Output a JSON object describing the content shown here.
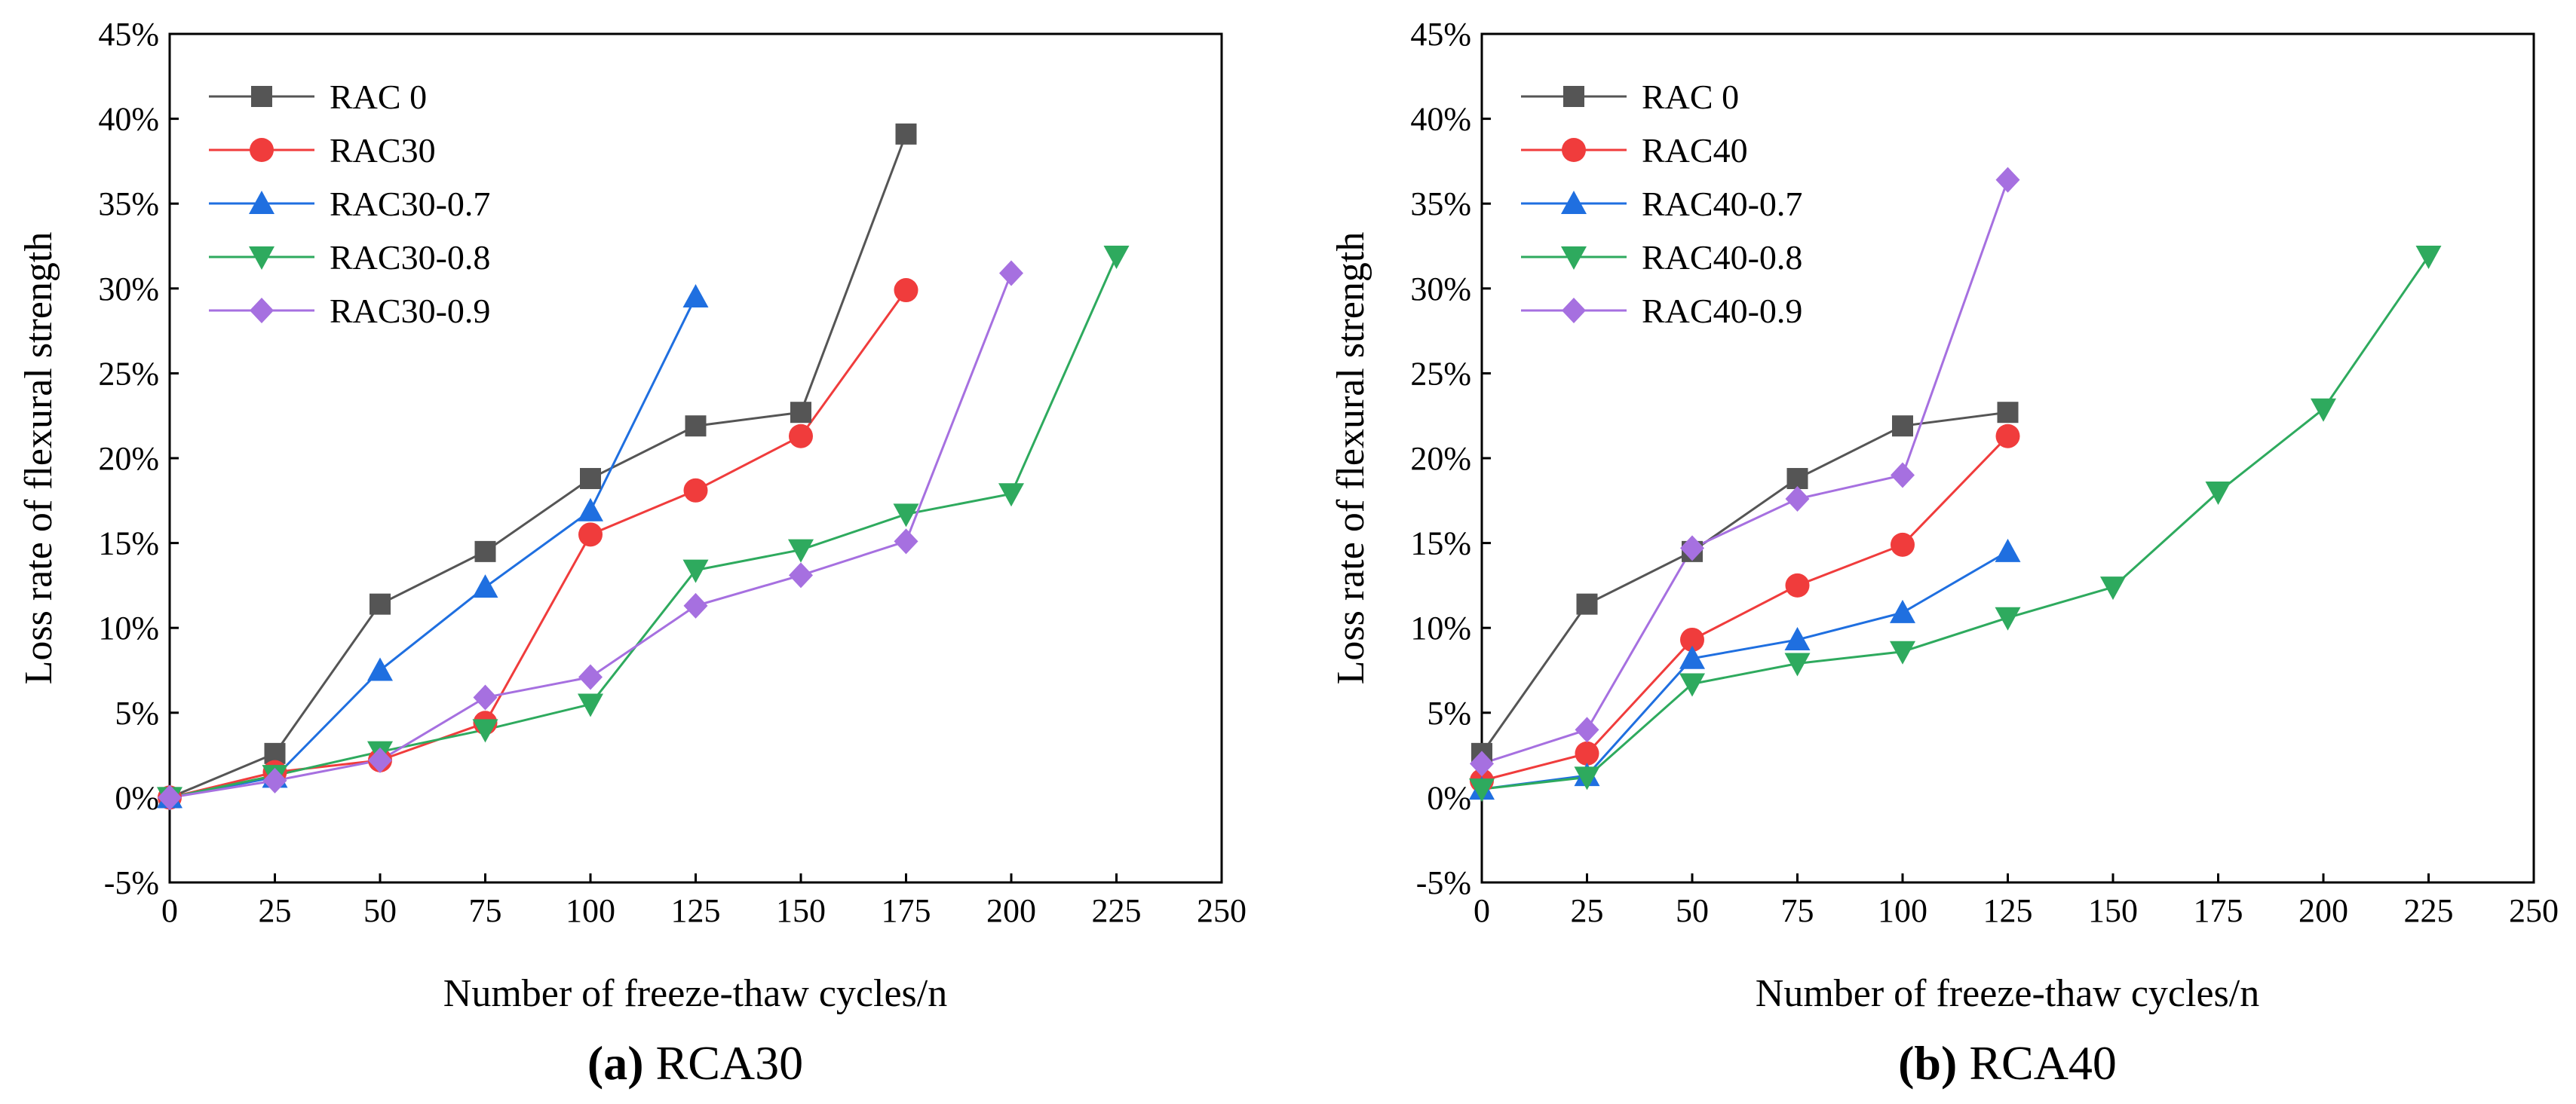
{
  "chart_data": [
    {
      "type": "line",
      "caption_letter": "(a)",
      "caption_title": "RCA30",
      "xlabel": "Number of freeze-thaw cycles/n",
      "ylabel": "Loss rate of flexural strength",
      "xlim": [
        0,
        250
      ],
      "ylim": [
        -5,
        45
      ],
      "xticks": [
        0,
        25,
        50,
        75,
        100,
        125,
        150,
        175,
        200,
        225,
        250
      ],
      "yticks": [
        -5,
        0,
        5,
        10,
        15,
        20,
        25,
        30,
        35,
        40,
        45
      ],
      "xtick_labels": [
        "0",
        "25",
        "50",
        "75",
        "100",
        "125",
        "150",
        "175",
        "200",
        "225",
        "250"
      ],
      "ytick_labels": [
        "-5%",
        "0%",
        "5%",
        "10%",
        "15%",
        "20%",
        "25%",
        "30%",
        "35%",
        "40%",
        "45%"
      ],
      "legend_position": "top-left",
      "grid": false,
      "series": [
        {
          "name": "RAC 0",
          "color": "#555555",
          "marker": "square",
          "x": [
            0,
            25,
            50,
            75,
            100,
            125,
            150,
            175
          ],
          "y": [
            0,
            2.6,
            11.4,
            14.5,
            18.8,
            21.9,
            22.7,
            39.1
          ]
        },
        {
          "name": "RAC30",
          "color": "#f03c3c",
          "marker": "circle",
          "x": [
            0,
            25,
            50,
            75,
            100,
            125,
            150,
            175
          ],
          "y": [
            0,
            1.5,
            2.2,
            4.4,
            15.5,
            18.1,
            21.3,
            29.9
          ]
        },
        {
          "name": "RAC30-0.7",
          "color": "#1f6fe0",
          "marker": "triangle-up",
          "x": [
            0,
            25,
            50,
            75,
            100,
            125
          ],
          "y": [
            0,
            1.2,
            7.5,
            12.4,
            16.9,
            29.5
          ]
        },
        {
          "name": "RAC30-0.8",
          "color": "#2eaa5e",
          "marker": "triangle-down",
          "x": [
            0,
            25,
            50,
            75,
            100,
            125,
            150,
            175,
            200,
            225
          ],
          "y": [
            0,
            1.3,
            2.7,
            4.0,
            5.5,
            13.4,
            14.6,
            16.7,
            17.9,
            31.9
          ]
        },
        {
          "name": "RAC30-0.9",
          "color": "#a670e0",
          "marker": "diamond",
          "x": [
            0,
            25,
            50,
            75,
            100,
            125,
            150,
            175,
            200
          ],
          "y": [
            0,
            1.0,
            2.2,
            5.9,
            7.1,
            11.3,
            13.1,
            15.1,
            30.9
          ]
        }
      ]
    },
    {
      "type": "line",
      "caption_letter": "(b)",
      "caption_title": "RCA40",
      "xlabel": "Number of freeze-thaw cycles/n",
      "ylabel": "Loss rate of flexural strength",
      "xlim": [
        0,
        250
      ],
      "ylim": [
        -5,
        45
      ],
      "xticks": [
        0,
        25,
        50,
        75,
        100,
        125,
        150,
        175,
        200,
        225,
        250
      ],
      "yticks": [
        -5,
        0,
        5,
        10,
        15,
        20,
        25,
        30,
        35,
        40,
        45
      ],
      "xtick_labels": [
        "0",
        "25",
        "50",
        "75",
        "100",
        "125",
        "150",
        "175",
        "200",
        "225",
        "250"
      ],
      "ytick_labels": [
        "-5%",
        "0%",
        "5%",
        "10%",
        "15%",
        "20%",
        "25%",
        "30%",
        "35%",
        "40%",
        "45%"
      ],
      "legend_position": "top-left",
      "grid": false,
      "series": [
        {
          "name": "RAC 0",
          "color": "#555555",
          "marker": "square",
          "x": [
            0,
            25,
            50,
            75,
            100,
            125
          ],
          "y": [
            2.6,
            11.4,
            14.5,
            18.8,
            21.9,
            22.7
          ]
        },
        {
          "name": "RAC40",
          "color": "#f03c3c",
          "marker": "circle",
          "x": [
            0,
            25,
            50,
            75,
            100,
            125
          ],
          "y": [
            1.0,
            2.6,
            9.3,
            12.5,
            14.9,
            21.3
          ]
        },
        {
          "name": "RAC40-0.7",
          "color": "#1f6fe0",
          "marker": "triangle-up",
          "x": [
            0,
            25,
            50,
            75,
            100,
            125
          ],
          "y": [
            0.5,
            1.3,
            8.2,
            9.3,
            10.9,
            14.5
          ]
        },
        {
          "name": "RAC40-0.8",
          "color": "#2eaa5e",
          "marker": "triangle-down",
          "x": [
            0,
            25,
            50,
            75,
            100,
            125,
            150,
            175,
            200,
            225
          ],
          "y": [
            0.5,
            1.2,
            6.7,
            7.9,
            8.6,
            10.6,
            12.4,
            18.0,
            22.9,
            31.9
          ]
        },
        {
          "name": "RAC40-0.9",
          "color": "#a670e0",
          "marker": "diamond",
          "x": [
            0,
            25,
            50,
            75,
            100,
            125
          ],
          "y": [
            2.0,
            4.0,
            14.7,
            17.6,
            19.0,
            36.4
          ]
        }
      ]
    }
  ]
}
